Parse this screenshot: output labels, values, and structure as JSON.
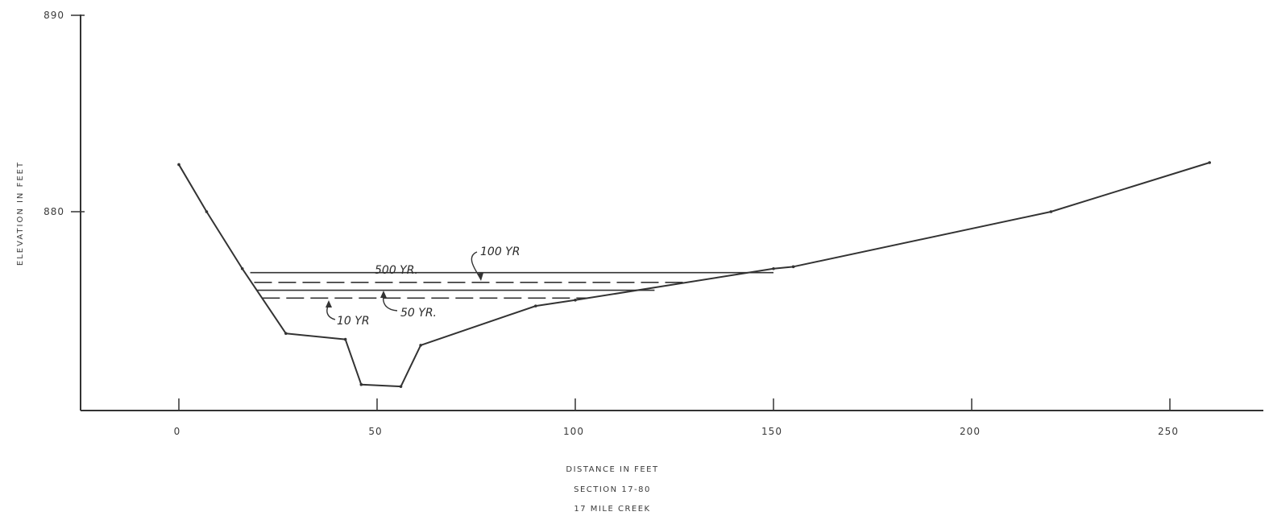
{
  "chart_data": {
    "type": "line",
    "title": "",
    "xlabel": "DISTANCE IN FEET",
    "ylabel": "ELEVATION IN FEET",
    "subtitle_lines": [
      "SECTION 17-80",
      "17 MILE CREEK"
    ],
    "xlim": [
      -25,
      275
    ],
    "ylim": [
      870,
      890
    ],
    "x_ticks": [
      0,
      50,
      100,
      150,
      200,
      250
    ],
    "y_ticks": [
      880,
      890
    ],
    "y_tick_labels": [
      "880",
      "890"
    ],
    "grid": false,
    "ground_profile": {
      "x": [
        0,
        7,
        16,
        27,
        42,
        46,
        56,
        61,
        90,
        100,
        150,
        155,
        220,
        260
      ],
      "y": [
        882.4,
        880,
        877.1,
        873.8,
        873.5,
        871.2,
        871.1,
        873.2,
        875.2,
        875.5,
        877.1,
        877.2,
        880,
        882.5
      ]
    },
    "water_surfaces": [
      {
        "label": "500 YR.",
        "elevation": 876.9,
        "x": [
          18,
          150
        ],
        "dashed": false
      },
      {
        "label": "100 YR",
        "elevation": 876.4,
        "x": [
          19,
          128
        ],
        "dashed": true
      },
      {
        "label": "50 YR.",
        "elevation": 876.0,
        "x": [
          19.5,
          120
        ],
        "dashed": false
      },
      {
        "label": "10 YR",
        "elevation": 875.6,
        "x": [
          21,
          103
        ],
        "dashed": true
      }
    ]
  }
}
